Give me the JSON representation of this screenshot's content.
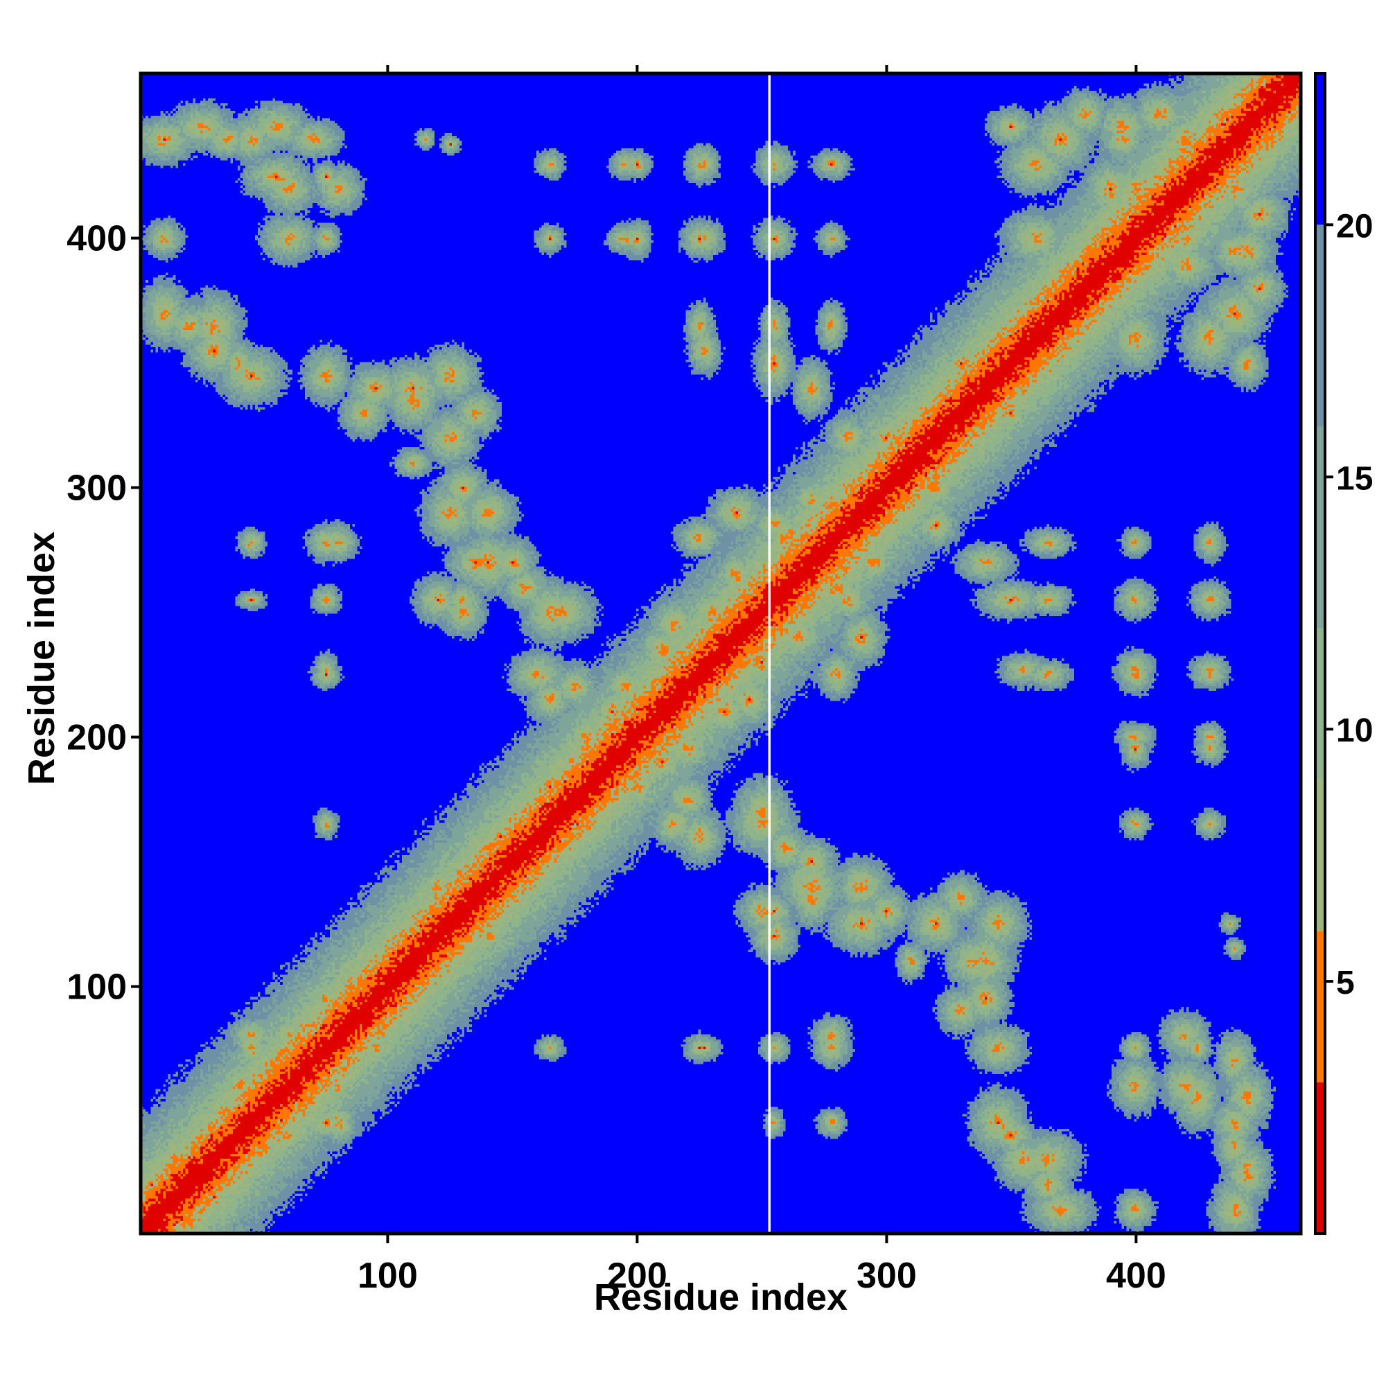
{
  "chart_data": {
    "type": "heatmap",
    "title": "",
    "xlabel": "Residue index",
    "ylabel": "Residue index",
    "n_residues": 466,
    "x_ticks": [
      100,
      200,
      300,
      400
    ],
    "y_ticks": [
      100,
      200,
      300,
      400
    ],
    "xlim": [
      1,
      466
    ],
    "ylim": [
      1,
      466
    ],
    "colorbar": {
      "ticks": [
        5,
        10,
        15,
        20
      ],
      "range": [
        0,
        23
      ],
      "bands": [
        {
          "from": 0,
          "to": 3,
          "color": "#e00000"
        },
        {
          "from": 3,
          "to": 6,
          "color": "#ff7700"
        },
        {
          "from": 6,
          "to": 9,
          "color": "#9fb57e"
        },
        {
          "from": 9,
          "to": 12,
          "color": "#8fb38a"
        },
        {
          "from": 12,
          "to": 16,
          "color": "#7fa59a"
        },
        {
          "from": 16,
          "to": 20,
          "color": "#6e91a6"
        },
        {
          "from": 20,
          "to": 23,
          "color": "#0000ff"
        }
      ]
    },
    "background_value": 23,
    "gap_residue": 253,
    "contact_blobs": [
      [
        5,
        20,
        12,
        10
      ],
      [
        15,
        30,
        12,
        10
      ],
      [
        30,
        20,
        10,
        10
      ],
      [
        45,
        80,
        10,
        8
      ],
      [
        60,
        50,
        12,
        8
      ],
      [
        75,
        45,
        10,
        8
      ],
      [
        40,
        60,
        10,
        10
      ],
      [
        80,
        60,
        8,
        10
      ],
      [
        95,
        75,
        8,
        8
      ],
      [
        10,
        440,
        14,
        10
      ],
      [
        25,
        445,
        14,
        10
      ],
      [
        45,
        440,
        10,
        10
      ],
      [
        70,
        440,
        12,
        8
      ],
      [
        60,
        420,
        12,
        10
      ],
      [
        80,
        420,
        10,
        10
      ],
      [
        10,
        400,
        6,
        8
      ],
      [
        75,
        400,
        6,
        6
      ],
      [
        10,
        370,
        10,
        14
      ],
      [
        30,
        365,
        12,
        14
      ],
      [
        40,
        350,
        8,
        10
      ],
      [
        75,
        345,
        10,
        12
      ],
      [
        95,
        340,
        12,
        10
      ],
      [
        110,
        335,
        12,
        12
      ],
      [
        125,
        345,
        12,
        12
      ],
      [
        135,
        330,
        10,
        10
      ],
      [
        110,
        310,
        8,
        6
      ],
      [
        45,
        278,
        6,
        6
      ],
      [
        75,
        278,
        8,
        8
      ],
      [
        75,
        255,
        6,
        6
      ],
      [
        75,
        227,
        5,
        7
      ],
      [
        75,
        165,
        4,
        6
      ],
      [
        45,
        255,
        5,
        4
      ],
      [
        125,
        290,
        12,
        14
      ],
      [
        140,
        290,
        10,
        12
      ],
      [
        135,
        270,
        12,
        10
      ],
      [
        120,
        255,
        10,
        10
      ],
      [
        150,
        270,
        10,
        10
      ],
      [
        165,
        250,
        12,
        14
      ],
      [
        160,
        225,
        12,
        10
      ],
      [
        175,
        220,
        10,
        10
      ],
      [
        165,
        180,
        12,
        12
      ],
      [
        145,
        160,
        12,
        12
      ],
      [
        170,
        160,
        10,
        12
      ],
      [
        190,
        210,
        12,
        12
      ],
      [
        210,
        235,
        12,
        12
      ],
      [
        230,
        250,
        12,
        10
      ],
      [
        200,
        180,
        12,
        12
      ],
      [
        215,
        165,
        10,
        10
      ],
      [
        220,
        195,
        12,
        10
      ],
      [
        245,
        215,
        12,
        12
      ],
      [
        250,
        245,
        10,
        10
      ],
      [
        265,
        240,
        12,
        10
      ],
      [
        260,
        280,
        14,
        14
      ],
      [
        280,
        270,
        12,
        12
      ],
      [
        285,
        255,
        10,
        10
      ],
      [
        240,
        290,
        12,
        10
      ],
      [
        225,
        280,
        10,
        8
      ],
      [
        270,
        295,
        10,
        10
      ],
      [
        250,
        170,
        12,
        14
      ],
      [
        270,
        140,
        14,
        14
      ],
      [
        290,
        140,
        12,
        12
      ],
      [
        250,
        130,
        10,
        10
      ],
      [
        300,
        130,
        10,
        10
      ],
      [
        260,
        155,
        10,
        10
      ],
      [
        120,
        125,
        10,
        10
      ],
      [
        140,
        120,
        10,
        10
      ],
      [
        110,
        105,
        10,
        10
      ],
      [
        300,
        320,
        12,
        12
      ],
      [
        320,
        305,
        12,
        12
      ],
      [
        310,
        300,
        10,
        10
      ],
      [
        320,
        285,
        10,
        10
      ],
      [
        320,
        125,
        12,
        12
      ],
      [
        340,
        110,
        12,
        14
      ],
      [
        330,
        90,
        10,
        10
      ],
      [
        340,
        270,
        12,
        8
      ],
      [
        350,
        255,
        14,
        8
      ],
      [
        355,
        227,
        10,
        7
      ],
      [
        345,
        45,
        12,
        14
      ],
      [
        355,
        30,
        12,
        12
      ],
      [
        365,
        20,
        10,
        10
      ],
      [
        400,
        60,
        10,
        12
      ],
      [
        425,
        55,
        10,
        14
      ],
      [
        445,
        55,
        10,
        14
      ],
      [
        440,
        35,
        8,
        10
      ],
      [
        400,
        10,
        8,
        8
      ],
      [
        400,
        75,
        6,
        6
      ],
      [
        425,
        75,
        6,
        6
      ],
      [
        400,
        227,
        8,
        8
      ],
      [
        430,
        227,
        8,
        6
      ],
      [
        400,
        255,
        8,
        8
      ],
      [
        430,
        255,
        8,
        8
      ],
      [
        400,
        278,
        6,
        6
      ],
      [
        430,
        278,
        6,
        8
      ],
      [
        400,
        200,
        8,
        6
      ],
      [
        430,
        200,
        6,
        6
      ],
      [
        400,
        165,
        6,
        6
      ],
      [
        430,
        165,
        6,
        6
      ],
      [
        370,
        440,
        14,
        14
      ],
      [
        390,
        420,
        12,
        14
      ],
      [
        410,
        450,
        12,
        12
      ],
      [
        440,
        420,
        14,
        14
      ],
      [
        420,
        400,
        12,
        12
      ],
      [
        445,
        395,
        12,
        12
      ],
      [
        380,
        380,
        12,
        12
      ],
      [
        400,
        360,
        12,
        14
      ],
      [
        430,
        360,
        12,
        14
      ],
      [
        450,
        380,
        10,
        10
      ],
      [
        395,
        440,
        10,
        10
      ],
      [
        350,
        445,
        10,
        8
      ],
      [
        330,
        350,
        10,
        10
      ],
      [
        345,
        340,
        10,
        10
      ],
      [
        165,
        430,
        6,
        6
      ],
      [
        195,
        430,
        6,
        6
      ],
      [
        225,
        430,
        6,
        8
      ],
      [
        255,
        430,
        6,
        6
      ],
      [
        278,
        430,
        6,
        6
      ],
      [
        165,
        400,
        6,
        6
      ],
      [
        195,
        400,
        8,
        6
      ],
      [
        225,
        400,
        8,
        8
      ],
      [
        255,
        400,
        6,
        6
      ],
      [
        278,
        400,
        6,
        6
      ],
      [
        125,
        438,
        4,
        4
      ],
      [
        225,
        365,
        6,
        10
      ],
      [
        255,
        365,
        6,
        10
      ],
      [
        278,
        365,
        6,
        10
      ],
      [
        165,
        75,
        6,
        5
      ],
      [
        225,
        75,
        6,
        6
      ],
      [
        255,
        75,
        6,
        6
      ],
      [
        278,
        80,
        8,
        8
      ],
      [
        278,
        45,
        6,
        6
      ],
      [
        255,
        45,
        4,
        6
      ],
      [
        115,
        440,
        4,
        4
      ],
      [
        255,
        130,
        8,
        8
      ]
    ]
  }
}
